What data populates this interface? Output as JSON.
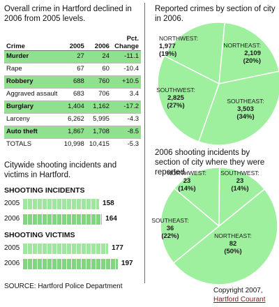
{
  "left": {
    "intro": "Overall crime in Hartford declined in 2006 from 2005 levels.",
    "table_headers": [
      "Crime",
      "2005",
      "2006",
      "Pct.\nChange"
    ],
    "rows": [
      {
        "crime": "Murder",
        "y2005": "27",
        "y2006": "24",
        "change": "-11.1",
        "highlight": true
      },
      {
        "crime": "Rape",
        "y2005": "67",
        "y2006": "60",
        "change": "-10.4",
        "highlight": false
      },
      {
        "crime": "Robbery",
        "y2005": "688",
        "y2006": "760",
        "change": "+10.5",
        "highlight": true
      },
      {
        "crime": "Aggraved assault",
        "y2005": "683",
        "y2006": "706",
        "change": "3.4",
        "highlight": false
      },
      {
        "crime": "Burglary",
        "y2005": "1,404",
        "y2006": "1,162",
        "change": "-17.2",
        "highlight": true
      },
      {
        "crime": "Larceny",
        "y2005": "6,262",
        "y2006": "5,995",
        "change": "-4.3",
        "highlight": false
      },
      {
        "crime": "Auto theft",
        "y2005": "1,867",
        "y2006": "1,708",
        "change": "-8.5",
        "highlight": true
      },
      {
        "crime": "TOTALS",
        "y2005": "10,998",
        "y2006": "10,415",
        "change": "-5.3",
        "highlight": false
      }
    ],
    "shoot_intro": "Citywide shooting incidents and victims in Hartford.",
    "incidents_title": "SHOOTING INCIDENTS",
    "victims_title": "SHOOTING VICTIMS",
    "source": "SOURCE: Hartford Police Department"
  },
  "right": {
    "crimes_intro": "Reported crimes by section of city in 2006.",
    "shoot_intro": "2006 shooting incidents by section of city where they were reported."
  },
  "footer": {
    "copyright": "Copyright 2007,",
    "publisher": "Hartford Courant"
  },
  "colors": {
    "accent_green": "#8fe08f",
    "pie_green": "#9ef09e",
    "link": "#7a1b1b"
  },
  "chart_data": [
    {
      "type": "table",
      "title": "Overall crime in Hartford declined in 2006 from 2005 levels.",
      "columns": [
        "Crime",
        "2005",
        "2006",
        "Pct. Change"
      ],
      "rows": [
        [
          "Murder",
          27,
          24,
          -11.1
        ],
        [
          "Rape",
          67,
          60,
          -10.4
        ],
        [
          "Robbery",
          688,
          760,
          10.5
        ],
        [
          "Aggraved assault",
          683,
          706,
          3.4
        ],
        [
          "Burglary",
          1404,
          1162,
          -17.2
        ],
        [
          "Larceny",
          6262,
          5995,
          -4.3
        ],
        [
          "Auto theft",
          1867,
          1708,
          -8.5
        ],
        [
          "TOTALS",
          10998,
          10415,
          -5.3
        ]
      ]
    },
    {
      "type": "bar",
      "title": "SHOOTING INCIDENTS",
      "categories": [
        "2005",
        "2006"
      ],
      "values": [
        158,
        164
      ]
    },
    {
      "type": "bar",
      "title": "SHOOTING VICTIMS",
      "categories": [
        "2005",
        "2006"
      ],
      "values": [
        177,
        197
      ]
    },
    {
      "type": "pie",
      "title": "Reported crimes by section of city in 2006.",
      "slices": [
        {
          "label": "NORTHWEST:",
          "value": 1977,
          "value_text": "1,977",
          "pct_text": "(19%)"
        },
        {
          "label": "NORTHEAST:",
          "value": 2109,
          "value_text": "2,109",
          "pct_text": "(20%)"
        },
        {
          "label": "SOUTHEAST:",
          "value": 3503,
          "value_text": "3,503",
          "pct_text": "(34%)"
        },
        {
          "label": "SOUTHWEST:",
          "value": 2825,
          "value_text": "2,825",
          "pct_text": "(27%)"
        }
      ]
    },
    {
      "type": "pie",
      "title": "2006 shooting incidents by section of city where they were reported.",
      "slices": [
        {
          "label": "NORTHWEST:",
          "value": 23,
          "value_text": "23",
          "pct_text": "(14%)"
        },
        {
          "label": "SOUTHWEST:",
          "value": 23,
          "value_text": "23",
          "pct_text": "(14%)"
        },
        {
          "label": "NORTHEAST:",
          "value": 82,
          "value_text": "82",
          "pct_text": "(50%)"
        },
        {
          "label": "SOUTHEAST:",
          "value": 36,
          "value_text": "36",
          "pct_text": "(22%)"
        }
      ]
    }
  ]
}
